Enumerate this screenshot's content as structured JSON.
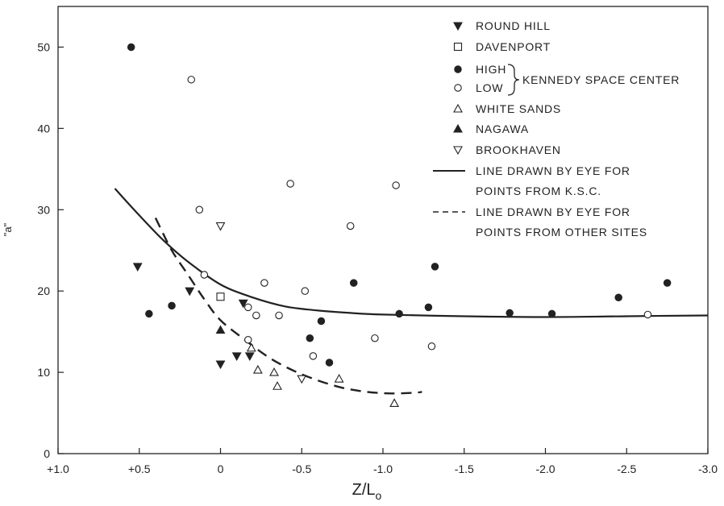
{
  "chart_data": {
    "type": "scatter",
    "title": "",
    "xlabel": "Z/L",
    "xlabel_subscript": "o",
    "ylabel": "\"a\"",
    "xlim": [
      1.0,
      -3.0
    ],
    "ylim": [
      0,
      55
    ],
    "x_ticks": [
      1.0,
      0.5,
      0,
      -0.5,
      -1.0,
      -1.5,
      -2.0,
      -2.5,
      -3.0
    ],
    "x_tick_labels": [
      "+1.0",
      "+0.5",
      "0",
      "-0.5",
      "-1.0",
      "-1.5",
      "-2.0",
      "-2.5",
      "-3.0"
    ],
    "y_ticks": [
      0,
      10,
      20,
      30,
      40,
      50
    ],
    "y_tick_labels": [
      "0",
      "10",
      "20",
      "30",
      "40",
      "50"
    ],
    "grid": false,
    "legend_position": "top-right",
    "legend": {
      "round_hill": "ROUND HILL",
      "davenport": "DAVENPORT",
      "high": "HIGH",
      "low": "LOW",
      "ksc": "KENNEDY SPACE CENTER",
      "white_sands": "WHITE SANDS",
      "nagawa": "NAGAWA",
      "brookhaven": "BROOKHAVEN",
      "solid_line_1": "LINE DRAWN BY EYE FOR",
      "solid_line_2": "POINTS FROM K.S.C.",
      "dashed_line_1": "LINE DRAWN BY EYE FOR",
      "dashed_line_2": "POINTS FROM OTHER SITES"
    },
    "series": [
      {
        "name": "ROUND HILL",
        "marker": "triangle-down-filled",
        "points": [
          [
            0.51,
            23
          ],
          [
            0.19,
            20
          ],
          [
            0.0,
            11
          ],
          [
            -0.1,
            12
          ],
          [
            -0.18,
            12
          ],
          [
            -0.14,
            18.5
          ]
        ]
      },
      {
        "name": "DAVENPORT",
        "marker": "square-open",
        "points": [
          [
            0.0,
            19.3
          ]
        ]
      },
      {
        "name": "HIGH",
        "marker": "circle-filled",
        "points": [
          [
            0.55,
            50
          ],
          [
            0.44,
            17.2
          ],
          [
            0.3,
            18.2
          ],
          [
            -0.55,
            14.2
          ],
          [
            -0.62,
            16.3
          ],
          [
            -0.67,
            11.2
          ],
          [
            -0.82,
            21
          ],
          [
            -1.1,
            17.2
          ],
          [
            -1.28,
            18
          ],
          [
            -1.32,
            23
          ],
          [
            -1.78,
            17.3
          ],
          [
            -2.04,
            17.2
          ],
          [
            -2.45,
            19.2
          ],
          [
            -2.75,
            21
          ]
        ]
      },
      {
        "name": "LOW",
        "marker": "circle-open",
        "points": [
          [
            0.18,
            46
          ],
          [
            0.13,
            30
          ],
          [
            0.1,
            22
          ],
          [
            -0.17,
            18
          ],
          [
            -0.17,
            14
          ],
          [
            -0.22,
            17
          ],
          [
            -0.27,
            21
          ],
          [
            -0.36,
            17
          ],
          [
            -0.43,
            33.2
          ],
          [
            -0.52,
            20
          ],
          [
            -0.57,
            12
          ],
          [
            -0.8,
            28
          ],
          [
            -0.95,
            14.2
          ],
          [
            -1.08,
            33
          ],
          [
            -1.3,
            13.2
          ],
          [
            -2.63,
            17.1
          ]
        ]
      },
      {
        "name": "WHITE SANDS",
        "marker": "triangle-up-open",
        "points": [
          [
            -0.19,
            13
          ],
          [
            -0.23,
            10.3
          ],
          [
            -0.33,
            10
          ],
          [
            -0.35,
            8.3
          ],
          [
            -0.73,
            9.2
          ],
          [
            -1.07,
            6.2
          ]
        ]
      },
      {
        "name": "NAGAWA",
        "marker": "triangle-up-filled",
        "points": [
          [
            0.0,
            15.2
          ]
        ]
      },
      {
        "name": "BROOKHAVEN",
        "marker": "triangle-down-open",
        "points": [
          [
            0.0,
            28
          ],
          [
            -0.5,
            9.2
          ]
        ]
      }
    ],
    "curves": [
      {
        "name": "LINE DRAWN BY EYE FOR POINTS FROM K.S.C.",
        "style": "solid",
        "points": [
          [
            0.65,
            32.6
          ],
          [
            0.5,
            29.3
          ],
          [
            0.35,
            26.2
          ],
          [
            0.2,
            23.6
          ],
          [
            0.0,
            20.8
          ],
          [
            -0.2,
            19.2
          ],
          [
            -0.4,
            18.1
          ],
          [
            -0.6,
            17.6
          ],
          [
            -0.8,
            17.3
          ],
          [
            -1.0,
            17.1
          ],
          [
            -1.5,
            16.9
          ],
          [
            -2.0,
            16.8
          ],
          [
            -2.5,
            16.9
          ],
          [
            -3.0,
            17.0
          ]
        ]
      },
      {
        "name": "LINE DRAWN BY EYE FOR POINTS FROM OTHER SITES",
        "style": "dashed",
        "points": [
          [
            0.4,
            29
          ],
          [
            0.3,
            25
          ],
          [
            0.2,
            22
          ],
          [
            0.1,
            19
          ],
          [
            0.0,
            16.4
          ],
          [
            -0.15,
            14
          ],
          [
            -0.3,
            11.8
          ],
          [
            -0.45,
            10.2
          ],
          [
            -0.6,
            9.0
          ],
          [
            -0.75,
            8.1
          ],
          [
            -0.9,
            7.6
          ],
          [
            -1.05,
            7.4
          ],
          [
            -1.2,
            7.5
          ],
          [
            -1.24,
            7.6
          ]
        ]
      }
    ]
  }
}
